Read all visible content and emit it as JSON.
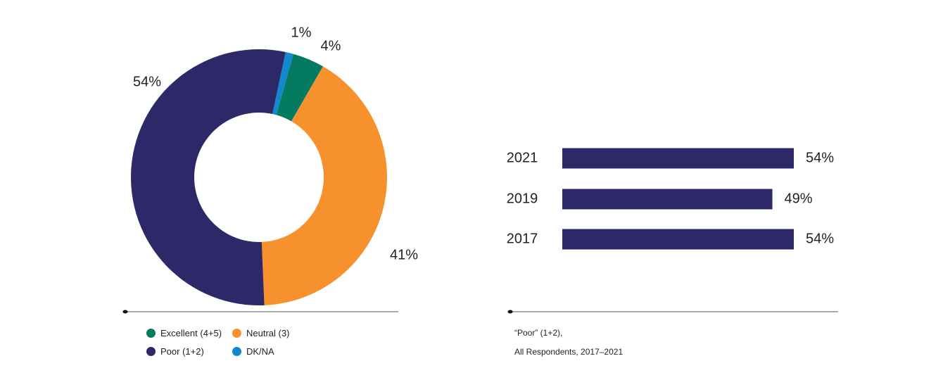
{
  "colors": {
    "excellent": "#047A61",
    "neutral": "#F7912D",
    "poor": "#2D2868",
    "dkna": "#1488CF",
    "axis": "#555555"
  },
  "chart_data": [
    {
      "type": "pie",
      "slices": [
        {
          "label": "DK/NA",
          "value": 1,
          "data_label": "1%",
          "color_key": "dkna"
        },
        {
          "label": "Excellent (4+5)",
          "value": 4,
          "data_label": "4%",
          "color_key": "excellent"
        },
        {
          "label": "Neutral (3)",
          "value": 41,
          "data_label": "41%",
          "color_key": "neutral"
        },
        {
          "label": "Poor (1+2)",
          "value": 54,
          "data_label": "54%",
          "color_key": "poor"
        }
      ],
      "legend": [
        {
          "label": "Excellent (4+5)",
          "color_key": "excellent"
        },
        {
          "label": "Neutral (3)",
          "color_key": "neutral"
        },
        {
          "label": "Poor (1+2)",
          "color_key": "poor"
        },
        {
          "label": "DK/NA",
          "color_key": "dkna"
        }
      ],
      "legend_position": "bottom"
    },
    {
      "type": "bar",
      "orientation": "horizontal",
      "categories": [
        "2021",
        "2019",
        "2017"
      ],
      "values": [
        54,
        49,
        54
      ],
      "data_labels": [
        "54%",
        "49%",
        "54%"
      ],
      "xlim": [
        0,
        54
      ],
      "caption_lines": [
        "“Poor” (1+2),",
        "All Respondents, 2017–2021"
      ]
    }
  ]
}
